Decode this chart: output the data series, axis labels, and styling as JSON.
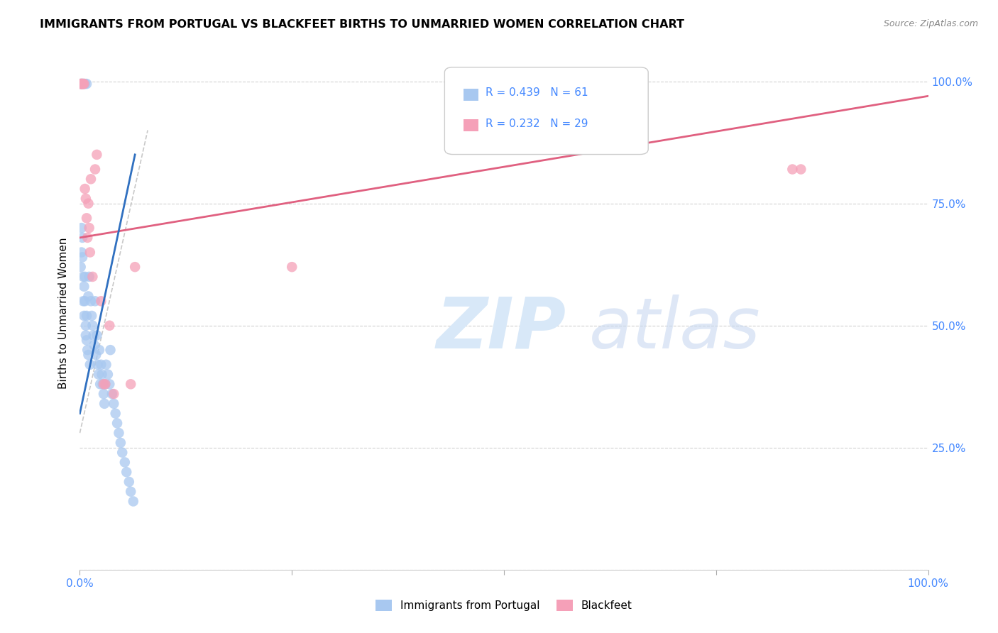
{
  "title": "IMMIGRANTS FROM PORTUGAL VS BLACKFEET BIRTHS TO UNMARRIED WOMEN CORRELATION CHART",
  "source": "Source: ZipAtlas.com",
  "ylabel": "Births to Unmarried Women",
  "legend_blue_r": "0.439",
  "legend_blue_n": "61",
  "legend_pink_r": "0.232",
  "legend_pink_n": "29",
  "legend_blue_label": "Immigrants from Portugal",
  "legend_pink_label": "Blackfeet",
  "blue_color": "#A8C8F0",
  "pink_color": "#F5A0B8",
  "blue_line_color": "#3070C0",
  "pink_line_color": "#E06080",
  "dash_color": "#BBBBBB",
  "tick_color": "#4488FF",
  "grid_color": "#CCCCCC",
  "blue_scatter_x": [
    0.001,
    0.002,
    0.002,
    0.003,
    0.003,
    0.004,
    0.004,
    0.005,
    0.005,
    0.006,
    0.006,
    0.007,
    0.007,
    0.008,
    0.008,
    0.009,
    0.01,
    0.01,
    0.011,
    0.012,
    0.013,
    0.014,
    0.015,
    0.016,
    0.017,
    0.018,
    0.019,
    0.02,
    0.021,
    0.022,
    0.023,
    0.024,
    0.025,
    0.026,
    0.027,
    0.028,
    0.029,
    0.03,
    0.031,
    0.033,
    0.035,
    0.036,
    0.038,
    0.04,
    0.042,
    0.044,
    0.046,
    0.048,
    0.05,
    0.053,
    0.055,
    0.058,
    0.06,
    0.063,
    0.001,
    0.002,
    0.003,
    0.004,
    0.005,
    0.006,
    0.008
  ],
  "blue_scatter_y": [
    0.62,
    0.65,
    0.7,
    0.64,
    0.68,
    0.6,
    0.55,
    0.58,
    0.52,
    0.6,
    0.55,
    0.5,
    0.48,
    0.52,
    0.47,
    0.45,
    0.56,
    0.44,
    0.6,
    0.42,
    0.55,
    0.52,
    0.5,
    0.48,
    0.46,
    0.55,
    0.44,
    0.48,
    0.42,
    0.4,
    0.45,
    0.38,
    0.42,
    0.4,
    0.38,
    0.36,
    0.34,
    0.38,
    0.42,
    0.4,
    0.38,
    0.45,
    0.36,
    0.34,
    0.32,
    0.3,
    0.28,
    0.26,
    0.24,
    0.22,
    0.2,
    0.18,
    0.16,
    0.14,
    0.995,
    0.995,
    0.995,
    0.995,
    0.995,
    0.995,
    0.995
  ],
  "pink_scatter_x": [
    0.001,
    0.001,
    0.002,
    0.002,
    0.003,
    0.003,
    0.004,
    0.005,
    0.006,
    0.007,
    0.008,
    0.009,
    0.01,
    0.011,
    0.012,
    0.013,
    0.015,
    0.018,
    0.02,
    0.025,
    0.028,
    0.03,
    0.035,
    0.04,
    0.06,
    0.065,
    0.25,
    0.84,
    0.85
  ],
  "pink_scatter_y": [
    0.995,
    0.995,
    0.995,
    0.995,
    0.995,
    0.995,
    0.995,
    0.995,
    0.78,
    0.76,
    0.72,
    0.68,
    0.75,
    0.7,
    0.65,
    0.8,
    0.6,
    0.82,
    0.85,
    0.55,
    0.38,
    0.38,
    0.5,
    0.36,
    0.38,
    0.62,
    0.62,
    0.82,
    0.82
  ],
  "blue_line_x": [
    0.0,
    0.065
  ],
  "blue_line_y": [
    0.32,
    0.85
  ],
  "pink_line_x": [
    0.0,
    1.0
  ],
  "pink_line_y": [
    0.68,
    0.97
  ],
  "dash_line_x": [
    0.01,
    0.065
  ],
  "dash_line_y": [
    0.32,
    0.85
  ],
  "xlim": [
    0.0,
    1.0
  ],
  "ylim": [
    0.0,
    1.05
  ]
}
